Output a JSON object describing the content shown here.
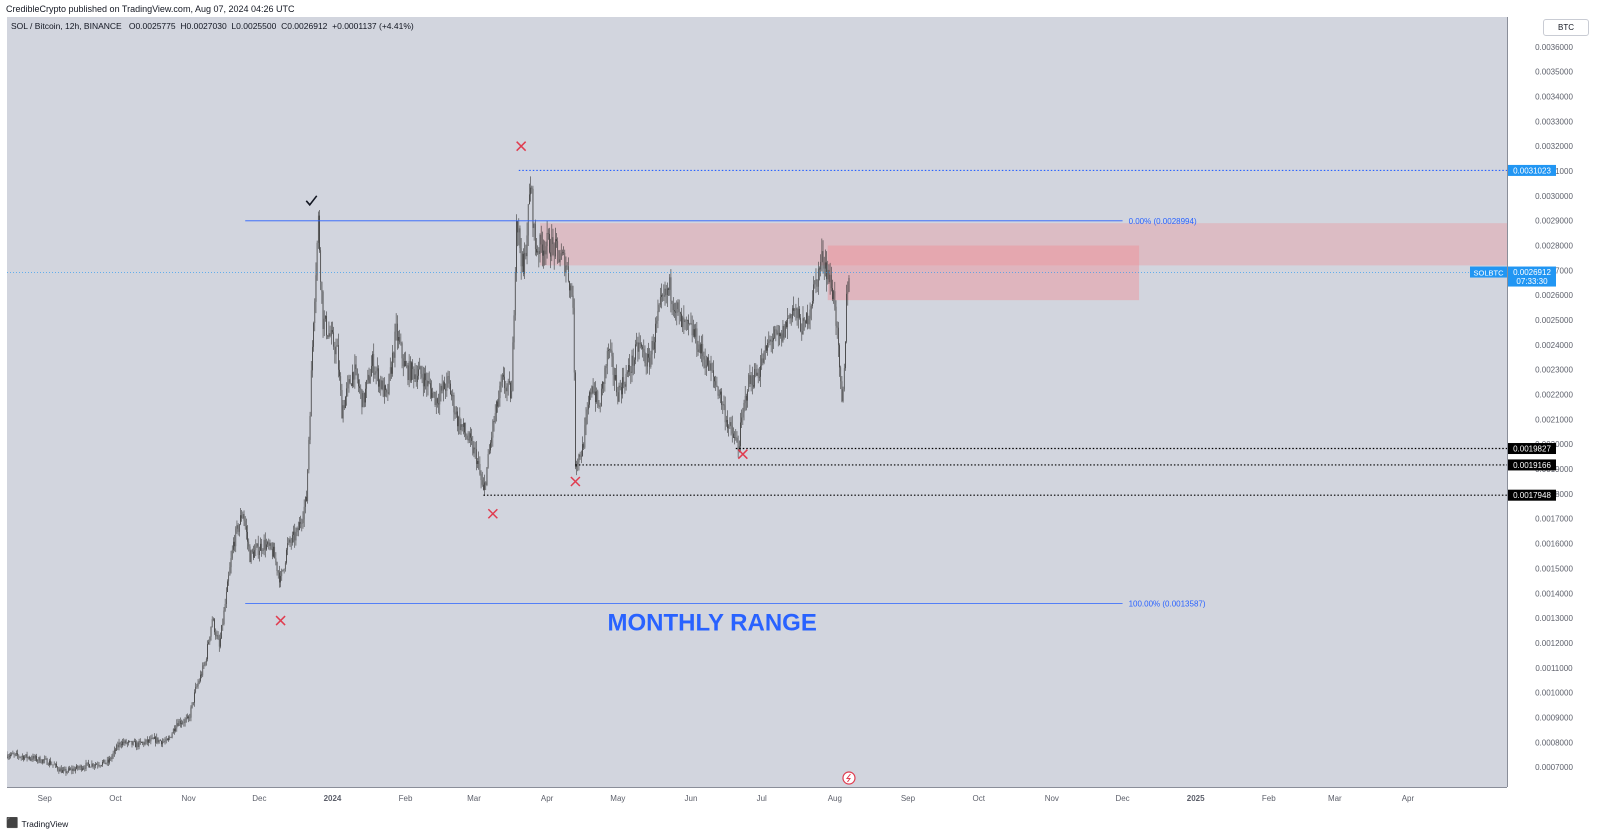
{
  "attribution": "CredibleCrypto published on TradingView.com, Aug 07, 2024 04:26 UTC",
  "legend": {
    "symbol": "SOL / Bitcoin, 12h, BINANCE",
    "o_label": "O",
    "o_value": "0.0025775",
    "h_label": "H",
    "h_value": "0.0027030",
    "l_label": "L",
    "l_value": "0.0025500",
    "c_label": "C",
    "c_value": "0.0026912",
    "change": "+0.0001137 (+4.41%)"
  },
  "currency_button": "BTC",
  "footer": {
    "logo": "TradingView"
  },
  "colors": {
    "background": "#d2d5de",
    "candle": "#3a3a3a",
    "blue": "#2962ff",
    "label_blue": "#2962ff",
    "price_tag": "#2196f3",
    "red": "#e03c4f",
    "zone": "#f08e96"
  },
  "chart_data": {
    "type": "candlestick",
    "symbol": "SOLBTC",
    "timeframe": "12h",
    "exchange": "BINANCE",
    "x_range": [
      "2023-08-16",
      "2025-05-13"
    ],
    "y_range": [
      0.00062,
      0.00372
    ],
    "x_ticks": [
      {
        "date": "2023-09-01",
        "label": "Sep",
        "bold": false
      },
      {
        "date": "2023-10-01",
        "label": "Oct",
        "bold": false
      },
      {
        "date": "2023-11-01",
        "label": "Nov",
        "bold": false
      },
      {
        "date": "2023-12-01",
        "label": "Dec",
        "bold": false
      },
      {
        "date": "2024-01-01",
        "label": "2024",
        "bold": true
      },
      {
        "date": "2024-02-01",
        "label": "Feb",
        "bold": false
      },
      {
        "date": "2024-03-01",
        "label": "Mar",
        "bold": false
      },
      {
        "date": "2024-04-01",
        "label": "Apr",
        "bold": false
      },
      {
        "date": "2024-05-01",
        "label": "May",
        "bold": false
      },
      {
        "date": "2024-06-01",
        "label": "Jun",
        "bold": false
      },
      {
        "date": "2024-07-01",
        "label": "Jul",
        "bold": false
      },
      {
        "date": "2024-08-01",
        "label": "Aug",
        "bold": false
      },
      {
        "date": "2024-09-01",
        "label": "Sep",
        "bold": false
      },
      {
        "date": "2024-10-01",
        "label": "Oct",
        "bold": false
      },
      {
        "date": "2024-11-01",
        "label": "Nov",
        "bold": false
      },
      {
        "date": "2024-12-01",
        "label": "Dec",
        "bold": false
      },
      {
        "date": "2025-01-01",
        "label": "2025",
        "bold": true
      },
      {
        "date": "2025-02-01",
        "label": "Feb",
        "bold": false
      },
      {
        "date": "2025-03-01",
        "label": "Mar",
        "bold": false
      },
      {
        "date": "2025-04-01",
        "label": "Apr",
        "bold": false
      }
    ],
    "y_ticks": [
      "0.0007000",
      "0.0008000",
      "0.0009000",
      "0.0010000",
      "0.0011000",
      "0.0012000",
      "0.0013000",
      "0.0014000",
      "0.0015000",
      "0.0016000",
      "0.0017000",
      "0.0018000",
      "0.0019000",
      "0.0020000",
      "0.0021000",
      "0.0022000",
      "0.0023000",
      "0.0024000",
      "0.0025000",
      "0.0026000",
      "0.0027000",
      "0.0028000",
      "0.0029000",
      "0.0030000",
      "0.0031000",
      "0.0032000",
      "0.0033000",
      "0.0034000",
      "0.0035000",
      "0.0036000"
    ],
    "price_path": [
      [
        "2023-08-16",
        0.00075
      ],
      [
        "2023-08-25",
        0.00074
      ],
      [
        "2023-09-03",
        0.00072
      ],
      [
        "2023-09-09",
        0.00068
      ],
      [
        "2023-09-20",
        0.00071
      ],
      [
        "2023-09-28",
        0.00072
      ],
      [
        "2023-10-03",
        0.0008
      ],
      [
        "2023-10-10",
        0.00079
      ],
      [
        "2023-10-18",
        0.00081
      ],
      [
        "2023-10-23",
        0.0008
      ],
      [
        "2023-10-27",
        0.00088
      ],
      [
        "2023-11-01",
        0.00089
      ],
      [
        "2023-11-04",
        0.00101
      ],
      [
        "2023-11-08",
        0.00112
      ],
      [
        "2023-11-11",
        0.0013
      ],
      [
        "2023-11-14",
        0.00118
      ],
      [
        "2023-11-20",
        0.0016
      ],
      [
        "2023-11-24",
        0.00173
      ],
      [
        "2023-11-27",
        0.00155
      ],
      [
        "2023-12-03",
        0.0016
      ],
      [
        "2023-12-07",
        0.00156
      ],
      [
        "2023-12-10",
        0.00145
      ],
      [
        "2023-12-13",
        0.00159
      ],
      [
        "2023-12-17",
        0.00164
      ],
      [
        "2023-12-21",
        0.00178
      ],
      [
        "2023-12-24",
        0.00252
      ],
      [
        "2023-12-26",
        0.0029
      ],
      [
        "2023-12-28",
        0.0025
      ],
      [
        "2024-01-03",
        0.00237
      ],
      [
        "2024-01-05",
        0.00214
      ],
      [
        "2024-01-10",
        0.0023
      ],
      [
        "2024-01-14",
        0.00217
      ],
      [
        "2024-01-18",
        0.00233
      ],
      [
        "2024-01-24",
        0.00218
      ],
      [
        "2024-01-28",
        0.00245
      ],
      [
        "2024-02-01",
        0.0023
      ],
      [
        "2024-02-08",
        0.00228
      ],
      [
        "2024-02-14",
        0.00218
      ],
      [
        "2024-02-19",
        0.00225
      ],
      [
        "2024-02-23",
        0.0021
      ],
      [
        "2024-02-27",
        0.00203
      ],
      [
        "2024-03-02",
        0.00195
      ],
      [
        "2024-03-05",
        0.0018
      ],
      [
        "2024-03-09",
        0.00207
      ],
      [
        "2024-03-13",
        0.00225
      ],
      [
        "2024-03-17",
        0.0022
      ],
      [
        "2024-03-19",
        0.00292
      ],
      [
        "2024-03-22",
        0.00268
      ],
      [
        "2024-03-25",
        0.00305
      ],
      [
        "2024-03-27",
        0.00279
      ],
      [
        "2024-04-02",
        0.00281
      ],
      [
        "2024-04-06",
        0.00276
      ],
      [
        "2024-04-09",
        0.00273
      ],
      [
        "2024-04-12",
        0.00258
      ],
      [
        "2024-04-13",
        0.00193
      ],
      [
        "2024-04-16",
        0.00198
      ],
      [
        "2024-04-20",
        0.00225
      ],
      [
        "2024-04-23",
        0.00214
      ],
      [
        "2024-04-27",
        0.00238
      ],
      [
        "2024-05-01",
        0.00221
      ],
      [
        "2024-05-06",
        0.0023
      ],
      [
        "2024-05-10",
        0.0024
      ],
      [
        "2024-05-14",
        0.00232
      ],
      [
        "2024-05-19",
        0.00255
      ],
      [
        "2024-05-23",
        0.00263
      ],
      [
        "2024-05-28",
        0.00248
      ],
      [
        "2024-06-02",
        0.00245
      ],
      [
        "2024-06-05",
        0.00238
      ],
      [
        "2024-06-09",
        0.0023
      ],
      [
        "2024-06-13",
        0.00221
      ],
      [
        "2024-06-17",
        0.00207
      ],
      [
        "2024-06-21",
        0.00199
      ],
      [
        "2024-06-25",
        0.00224
      ],
      [
        "2024-06-30",
        0.0023
      ],
      [
        "2024-07-05",
        0.00243
      ],
      [
        "2024-07-09",
        0.00242
      ],
      [
        "2024-07-14",
        0.00255
      ],
      [
        "2024-07-19",
        0.00246
      ],
      [
        "2024-07-23",
        0.00262
      ],
      [
        "2024-07-27",
        0.00276
      ],
      [
        "2024-07-29",
        0.00269
      ],
      [
        "2024-08-01",
        0.00258
      ],
      [
        "2024-08-02",
        0.00243
      ],
      [
        "2024-08-04",
        0.00215
      ],
      [
        "2024-08-05",
        0.00228
      ],
      [
        "2024-08-06",
        0.0026
      ],
      [
        "2024-08-07",
        0.00269
      ]
    ],
    "levels": [
      {
        "price": 0.0031023,
        "label": "0.0031023",
        "from": "2024-03-20",
        "to": "axis",
        "style": "dotted",
        "color": "#2962ff",
        "tag": "blue"
      },
      {
        "price": 0.0019827,
        "label": "0.0019827",
        "from": "2024-06-20",
        "to": "axis",
        "style": "dotted",
        "color": "#000000",
        "tag": "black"
      },
      {
        "price": 0.0019166,
        "label": "0.0019166",
        "from": "2024-04-13",
        "to": "axis",
        "style": "dotted",
        "color": "#000000",
        "tag": "black"
      },
      {
        "price": 0.0017948,
        "label": "0.0017948",
        "from": "2024-03-05",
        "to": "axis",
        "style": "dotted",
        "color": "#000000",
        "tag": "black"
      }
    ],
    "fib": [
      {
        "price": 0.0028994,
        "text": "0.00% (0.0028994)",
        "from": "2023-11-25",
        "to": "2024-12-01"
      },
      {
        "price": 0.0013587,
        "text": "100.00% (0.0013587)",
        "from": "2023-11-25",
        "to": "2024-12-01"
      }
    ],
    "zones": [
      {
        "from": "2024-03-29",
        "to": "axis",
        "top": 0.00289,
        "bottom": 0.00272,
        "opacity": 0.35
      },
      {
        "from": "2024-07-29",
        "to": "2024-12-08",
        "top": 0.0028,
        "bottom": 0.00258,
        "opacity": 0.45
      }
    ],
    "current_price": {
      "price": 0.0026912,
      "symbol": "SOLBTC",
      "value": "0.0026912",
      "countdown": "07:33:30"
    },
    "markers": [
      {
        "date": "2024-03-21",
        "price": 0.0032,
        "type": "cross"
      },
      {
        "date": "2024-03-09",
        "price": 0.00172,
        "type": "cross"
      },
      {
        "date": "2023-12-10",
        "price": 0.00129,
        "type": "cross"
      },
      {
        "date": "2024-04-13",
        "price": 0.00185,
        "type": "cross"
      },
      {
        "date": "2024-06-23",
        "price": 0.00196,
        "type": "cross"
      },
      {
        "date": "2023-12-23",
        "price": 0.00298,
        "type": "check"
      }
    ],
    "annotation": {
      "text": "MONTHLY RANGE",
      "date": "2024-06-10",
      "price": 0.00125
    },
    "dividend_marker": {
      "date": "2024-08-07"
    }
  }
}
